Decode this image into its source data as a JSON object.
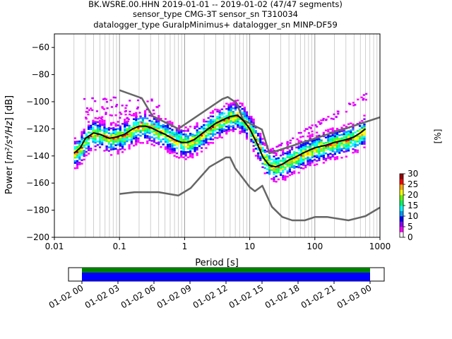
{
  "chart_data": [
    {
      "type": "heatmap",
      "title_lines": [
        "BK.WSRE.00.HHN   2019-01-01 -- 2019-01-02  (47/47 segments)",
        "sensor_type CMG-3T sensor_sn T310034",
        "datalogger_type GuralpMinimus+ datalogger_sn MINP-DF59"
      ],
      "xlabel": "Period [s]",
      "ylabel_main": "Power [",
      "ylabel_units": "m²/s⁴/Hz",
      "ylabel_tail": "] [dB]",
      "x_scale": "log",
      "xlim": [
        0.01,
        1000
      ],
      "ylim": [
        -200,
        -50
      ],
      "x_ticks": [
        {
          "value": 0.01,
          "label": "0.01"
        },
        {
          "value": 0.1,
          "label": "0.1"
        },
        {
          "value": 1,
          "label": "1"
        },
        {
          "value": 10,
          "label": "10"
        },
        {
          "value": 100,
          "label": "100"
        },
        {
          "value": 1000,
          "label": "1000"
        }
      ],
      "y_ticks": [
        {
          "value": -60,
          "label": "−60"
        },
        {
          "value": -80,
          "label": "−80"
        },
        {
          "value": -100,
          "label": "−100"
        },
        {
          "value": -120,
          "label": "−120"
        },
        {
          "value": -140,
          "label": "−140"
        },
        {
          "value": -160,
          "label": "−160"
        },
        {
          "value": -180,
          "label": "−180"
        },
        {
          "value": -200,
          "label": "−200"
        }
      ],
      "grid": "vertical",
      "colorbar": {
        "label": "[%]",
        "range": [
          0,
          30
        ],
        "ticks": [
          {
            "value": 0,
            "label": "0"
          },
          {
            "value": 5,
            "label": "5"
          },
          {
            "value": 10,
            "label": "10"
          },
          {
            "value": 15,
            "label": "15"
          },
          {
            "value": 20,
            "label": "20"
          },
          {
            "value": 25,
            "label": "25"
          },
          {
            "value": 30,
            "label": "30"
          }
        ],
        "colors": [
          "#ffffff",
          "#ff00ff",
          "#8800ff",
          "#0000ff",
          "#0099ff",
          "#00ffff",
          "#00ff66",
          "#66ff00",
          "#ffff00",
          "#ffaa00",
          "#ff0000",
          "#990000"
        ]
      },
      "series": [
        {
          "role": "noise-model-high",
          "color": "#666666",
          "x": [
            0.1,
            0.22,
            0.32,
            0.8,
            3.8,
            4.6,
            6.3,
            7.9,
            15.4,
            20,
            1000
          ],
          "y": [
            -91.5,
            -97.4,
            -110.5,
            -120,
            -98,
            -96.5,
            -101,
            -113.5,
            -120.5,
            -138,
            -111.5
          ]
        },
        {
          "role": "noise-model-low",
          "color": "#666666",
          "x": [
            0.1,
            0.17,
            0.4,
            0.8,
            1.24,
            2.4,
            4.3,
            5,
            6,
            10,
            12,
            15.6,
            21.9,
            31.6,
            45,
            70,
            101,
            154,
            328,
            600,
            1000
          ],
          "y": [
            -168,
            -166.7,
            -166.7,
            -169.2,
            -163.7,
            -148.1,
            -141.1,
            -141.1,
            -149,
            -163,
            -166,
            -162,
            -177.5,
            -185,
            -187.5,
            -187.5,
            -185,
            -185,
            -187.5,
            -184.4,
            -178
          ]
        },
        {
          "role": "mode",
          "color": "#000000",
          "x": [
            0.02,
            0.025,
            0.03,
            0.04,
            0.05,
            0.07,
            0.09,
            0.12,
            0.16,
            0.2,
            0.25,
            0.3,
            0.4,
            0.5,
            0.7,
            0.9,
            1.1,
            1.4,
            1.8,
            2.3,
            3,
            4,
            5,
            6.5,
            8,
            10,
            13,
            16,
            20,
            25,
            32,
            40,
            50,
            65,
            80,
            100,
            150,
            200,
            300,
            400,
            500,
            600
          ],
          "y": [
            -138,
            -134,
            -127,
            -123,
            -124,
            -127,
            -126,
            -124,
            -120,
            -118,
            -118,
            -119,
            -122,
            -124,
            -128,
            -130,
            -130,
            -128,
            -124,
            -120,
            -116,
            -113,
            -111,
            -110,
            -114,
            -120,
            -131,
            -141,
            -147,
            -148,
            -146,
            -143,
            -141,
            -138,
            -136,
            -134,
            -132,
            -130,
            -128,
            -126,
            -123,
            -120
          ]
        }
      ]
    },
    {
      "type": "bar",
      "role": "data-availability",
      "x_tick_labels": [
        "01-02 00",
        "01-02 03",
        "01-02 06",
        "01-02 09",
        "01-02 12",
        "01-02 15",
        "01-02 18",
        "01-02 21",
        "01-03 00"
      ],
      "series": [
        {
          "role": "psd-segments",
          "color": "#008000"
        },
        {
          "role": "data-coverage",
          "color": "#0000ff"
        }
      ],
      "coverage_fraction": 1.0
    }
  ]
}
